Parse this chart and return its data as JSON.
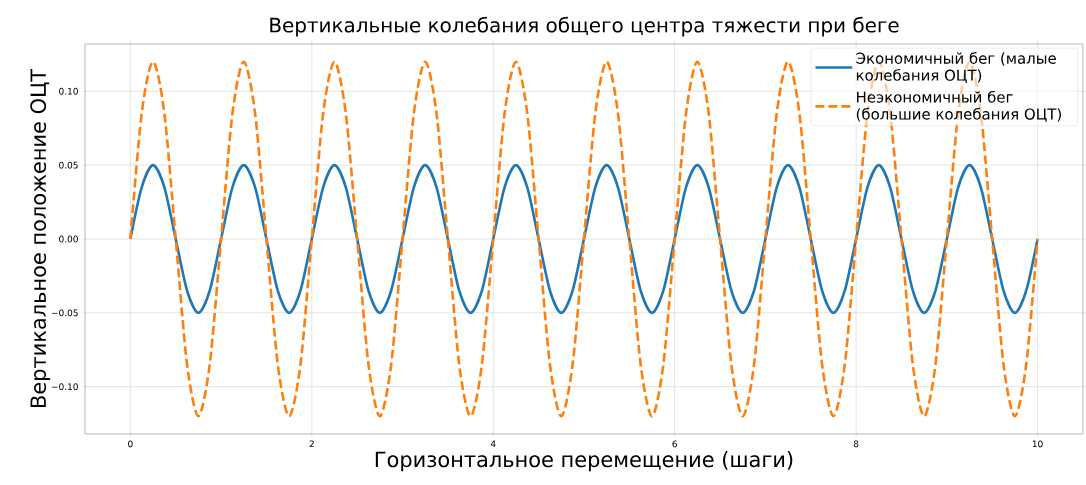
{
  "chart_data": {
    "type": "line",
    "title": "Вертикальные колебания общего центра тяжести при беге",
    "xlabel": "Горизонтальное перемещение (шаги)",
    "ylabel": "Вертикальное положение ОЦТ",
    "x": [
      0,
      0.125,
      0.25,
      0.375,
      0.5,
      0.625,
      0.75,
      0.875,
      1,
      1.125,
      1.25,
      1.375,
      1.5,
      1.625,
      1.75,
      1.875,
      2,
      2.125,
      2.25,
      2.375,
      2.5,
      2.625,
      2.75,
      2.875,
      3,
      3.125,
      3.25,
      3.375,
      3.5,
      3.625,
      3.75,
      3.875,
      4,
      4.125,
      4.25,
      4.375,
      4.5,
      4.625,
      4.75,
      4.875,
      5,
      5.125,
      5.25,
      5.375,
      5.5,
      5.625,
      5.75,
      5.875,
      6,
      6.125,
      6.25,
      6.375,
      6.5,
      6.625,
      6.75,
      6.875,
      7,
      7.125,
      7.25,
      7.375,
      7.5,
      7.625,
      7.75,
      7.875,
      8,
      8.125,
      8.25,
      8.375,
      8.5,
      8.625,
      8.75,
      8.875,
      9,
      9.125,
      9.25,
      9.375,
      9.5,
      9.625,
      9.75,
      9.875,
      10
    ],
    "series": [
      {
        "name": "Экономичный бег (малые колебания ОЦТ)",
        "color": "#1f77b4",
        "line_style": "solid",
        "values": [
          0,
          0.035,
          0.05,
          0.035,
          0,
          -0.035,
          -0.05,
          -0.035,
          0,
          0.035,
          0.05,
          0.035,
          0,
          -0.035,
          -0.05,
          -0.035,
          0,
          0.035,
          0.05,
          0.035,
          0,
          -0.035,
          -0.05,
          -0.035,
          0,
          0.035,
          0.05,
          0.035,
          0,
          -0.035,
          -0.05,
          -0.035,
          0,
          0.035,
          0.05,
          0.035,
          0,
          -0.035,
          -0.05,
          -0.035,
          0,
          0.035,
          0.05,
          0.035,
          0,
          -0.035,
          -0.05,
          -0.035,
          0,
          0.035,
          0.05,
          0.035,
          0,
          -0.035,
          -0.05,
          -0.035,
          0,
          0.035,
          0.05,
          0.035,
          0,
          -0.035,
          -0.05,
          -0.035,
          0,
          0.035,
          0.05,
          0.035,
          0,
          -0.035,
          -0.05,
          -0.035,
          0,
          0.035,
          0.05,
          0.035,
          0,
          -0.035,
          -0.05,
          -0.035,
          0
        ]
      },
      {
        "name": "Неэкономичный бег (большие колебания ОЦТ)",
        "color": "#ff7f0e",
        "line_style": "dashed",
        "values": [
          0,
          0.085,
          0.12,
          0.085,
          0,
          -0.085,
          -0.12,
          -0.085,
          0,
          0.085,
          0.12,
          0.085,
          0,
          -0.085,
          -0.12,
          -0.085,
          0,
          0.085,
          0.12,
          0.085,
          0,
          -0.085,
          -0.12,
          -0.085,
          0,
          0.085,
          0.12,
          0.085,
          0,
          -0.085,
          -0.12,
          -0.085,
          0,
          0.085,
          0.12,
          0.085,
          0,
          -0.085,
          -0.12,
          -0.085,
          0,
          0.085,
          0.12,
          0.085,
          0,
          -0.085,
          -0.12,
          -0.085,
          0,
          0.085,
          0.12,
          0.085,
          0,
          -0.085,
          -0.12,
          -0.085,
          0,
          0.085,
          0.12,
          0.085,
          0,
          -0.085,
          -0.12,
          -0.085,
          0,
          0.085,
          0.12,
          0.085,
          0,
          -0.085,
          -0.12,
          -0.085,
          0,
          0.085,
          0.12,
          0.085,
          0,
          -0.085,
          -0.12,
          -0.085,
          0
        ]
      }
    ],
    "xlim": [
      -0.5,
      10.5
    ],
    "ylim": [
      -0.132,
      0.132
    ],
    "xticks": [
      0,
      2,
      4,
      6,
      8,
      10
    ],
    "yticks": [
      {
        "value": -0.1,
        "label": "−0.10"
      },
      {
        "value": -0.05,
        "label": "−0.05"
      },
      {
        "value": 0,
        "label": "0.00"
      },
      {
        "value": 0.05,
        "label": "0.05"
      },
      {
        "value": 0.1,
        "label": "0.10"
      }
    ],
    "grid": true,
    "legend": "top right"
  }
}
